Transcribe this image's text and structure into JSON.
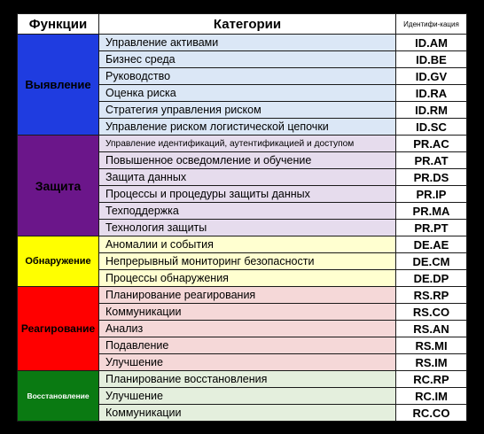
{
  "headers": {
    "function": "Функции",
    "category": "Категории",
    "identifier": "Идентифи-кация"
  },
  "groups": [
    {
      "name": "Выявление",
      "func_bg": "#1f3ce0",
      "cat_bg": "#dbe7f6",
      "rows": [
        {
          "category": "Управление активами",
          "id": "ID.AM"
        },
        {
          "category": "Бизнес среда",
          "id": "ID.BE"
        },
        {
          "category": "Руководство",
          "id": "ID.GV"
        },
        {
          "category": "Оценка риска",
          "id": "ID.RA"
        },
        {
          "category": "Стратегия управления риском",
          "id": "ID.RM"
        },
        {
          "category": "Управление риском логистической цепочки",
          "id": "ID.SC"
        }
      ]
    },
    {
      "name": "Защита",
      "func_bg": "#6b168a",
      "cat_bg": "#e6dced",
      "rows": [
        {
          "category": "Управление идентификаций, аутентификацией и доступом",
          "id": "PR.AC",
          "small": true
        },
        {
          "category": "Повышенное осведомление и обучение",
          "id": "PR.AT"
        },
        {
          "category": "Защита данных",
          "id": "PR.DS"
        },
        {
          "category": "Процессы  и процедуры защиты данных",
          "id": "PR.IP"
        },
        {
          "category": "Техподдержка",
          "id": "PR.MA"
        },
        {
          "category": "Технология защиты",
          "id": "PR.PT"
        }
      ]
    },
    {
      "name": "Обнаружение",
      "func_bg": "#ffff00",
      "cat_bg": "#ffffd0",
      "rows": [
        {
          "category": "Аномалии и события",
          "id": "DE.AE"
        },
        {
          "category": "Непрерывный мониторинг безопасности",
          "id": "DE.CM"
        },
        {
          "category": "Процессы обнаружения",
          "id": "DE.DP"
        }
      ]
    },
    {
      "name": "Реагирование",
      "func_bg": "#ff0000",
      "cat_bg": "#f5d8d8",
      "rows": [
        {
          "category": "Планирование реагирования",
          "id": "RS.RP"
        },
        {
          "category": "Коммуникации",
          "id": "RS.CO"
        },
        {
          "category": "Анализ",
          "id": "RS.AN"
        },
        {
          "category": "Подавление",
          "id": "RS.MI"
        },
        {
          "category": "Улучшение",
          "id": "RS.IM"
        }
      ]
    },
    {
      "name": "Восстановление",
      "func_bg": "#0a7a12",
      "cat_bg": "#e4efdd",
      "rows": [
        {
          "category": "Планирование восстановления",
          "id": "RC.RP"
        },
        {
          "category": "Улучшение",
          "id": "RC.IM"
        },
        {
          "category": "Коммуникации",
          "id": "RC.CO"
        }
      ]
    }
  ]
}
